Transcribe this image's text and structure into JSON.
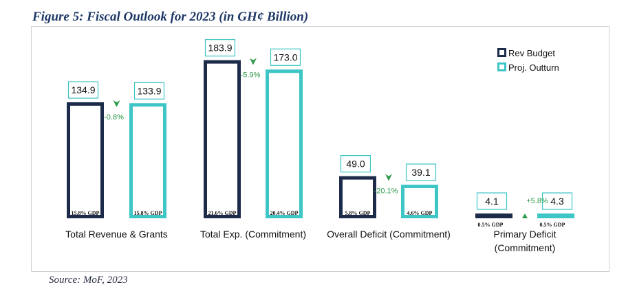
{
  "figure": {
    "title": "Figure 5: Fiscal Outlook for 2023 (in GH¢ Billion)",
    "source": "Source: MoF, 2023"
  },
  "chart_data": {
    "type": "bar",
    "categories": [
      [
        "Total Revenue & Grants"
      ],
      [
        "Total Exp. (Commitment)"
      ],
      [
        "Overall Deficit (Commitment)"
      ],
      [
        "Primary Deficit",
        "(Commitment)"
      ]
    ],
    "series": [
      {
        "name": "Rev Budget",
        "values": [
          134.9,
          183.9,
          49.0,
          4.1
        ],
        "labels": [
          "134.9",
          "183.9",
          "49.0",
          "4.1"
        ],
        "gdp": [
          "15.8% GDP",
          "21.6% GDP",
          "5.8% GDP",
          "0.5% GDP"
        ],
        "color": "#1c2b4a"
      },
      {
        "name": "Proj. Outturn",
        "values": [
          133.9,
          173.0,
          39.1,
          4.3
        ],
        "labels": [
          "133.9",
          "173.0",
          "39.1",
          "4.3"
        ],
        "gdp": [
          "15.8% GDP",
          "20.4% GDP",
          "4.6% GDP",
          "0.5% GDP"
        ],
        "color": "#3ec5c6"
      }
    ],
    "changes": [
      {
        "label": "-0.8%",
        "direction": "down"
      },
      {
        "label": "-5.9%",
        "direction": "down"
      },
      {
        "label": "-20.1%",
        "direction": "down"
      },
      {
        "label": "+5.8%",
        "direction": "up"
      }
    ],
    "legend_position": "top-right",
    "grid": false,
    "ylim": [
      0,
      190
    ],
    "change_color": "#2e9b4a"
  }
}
